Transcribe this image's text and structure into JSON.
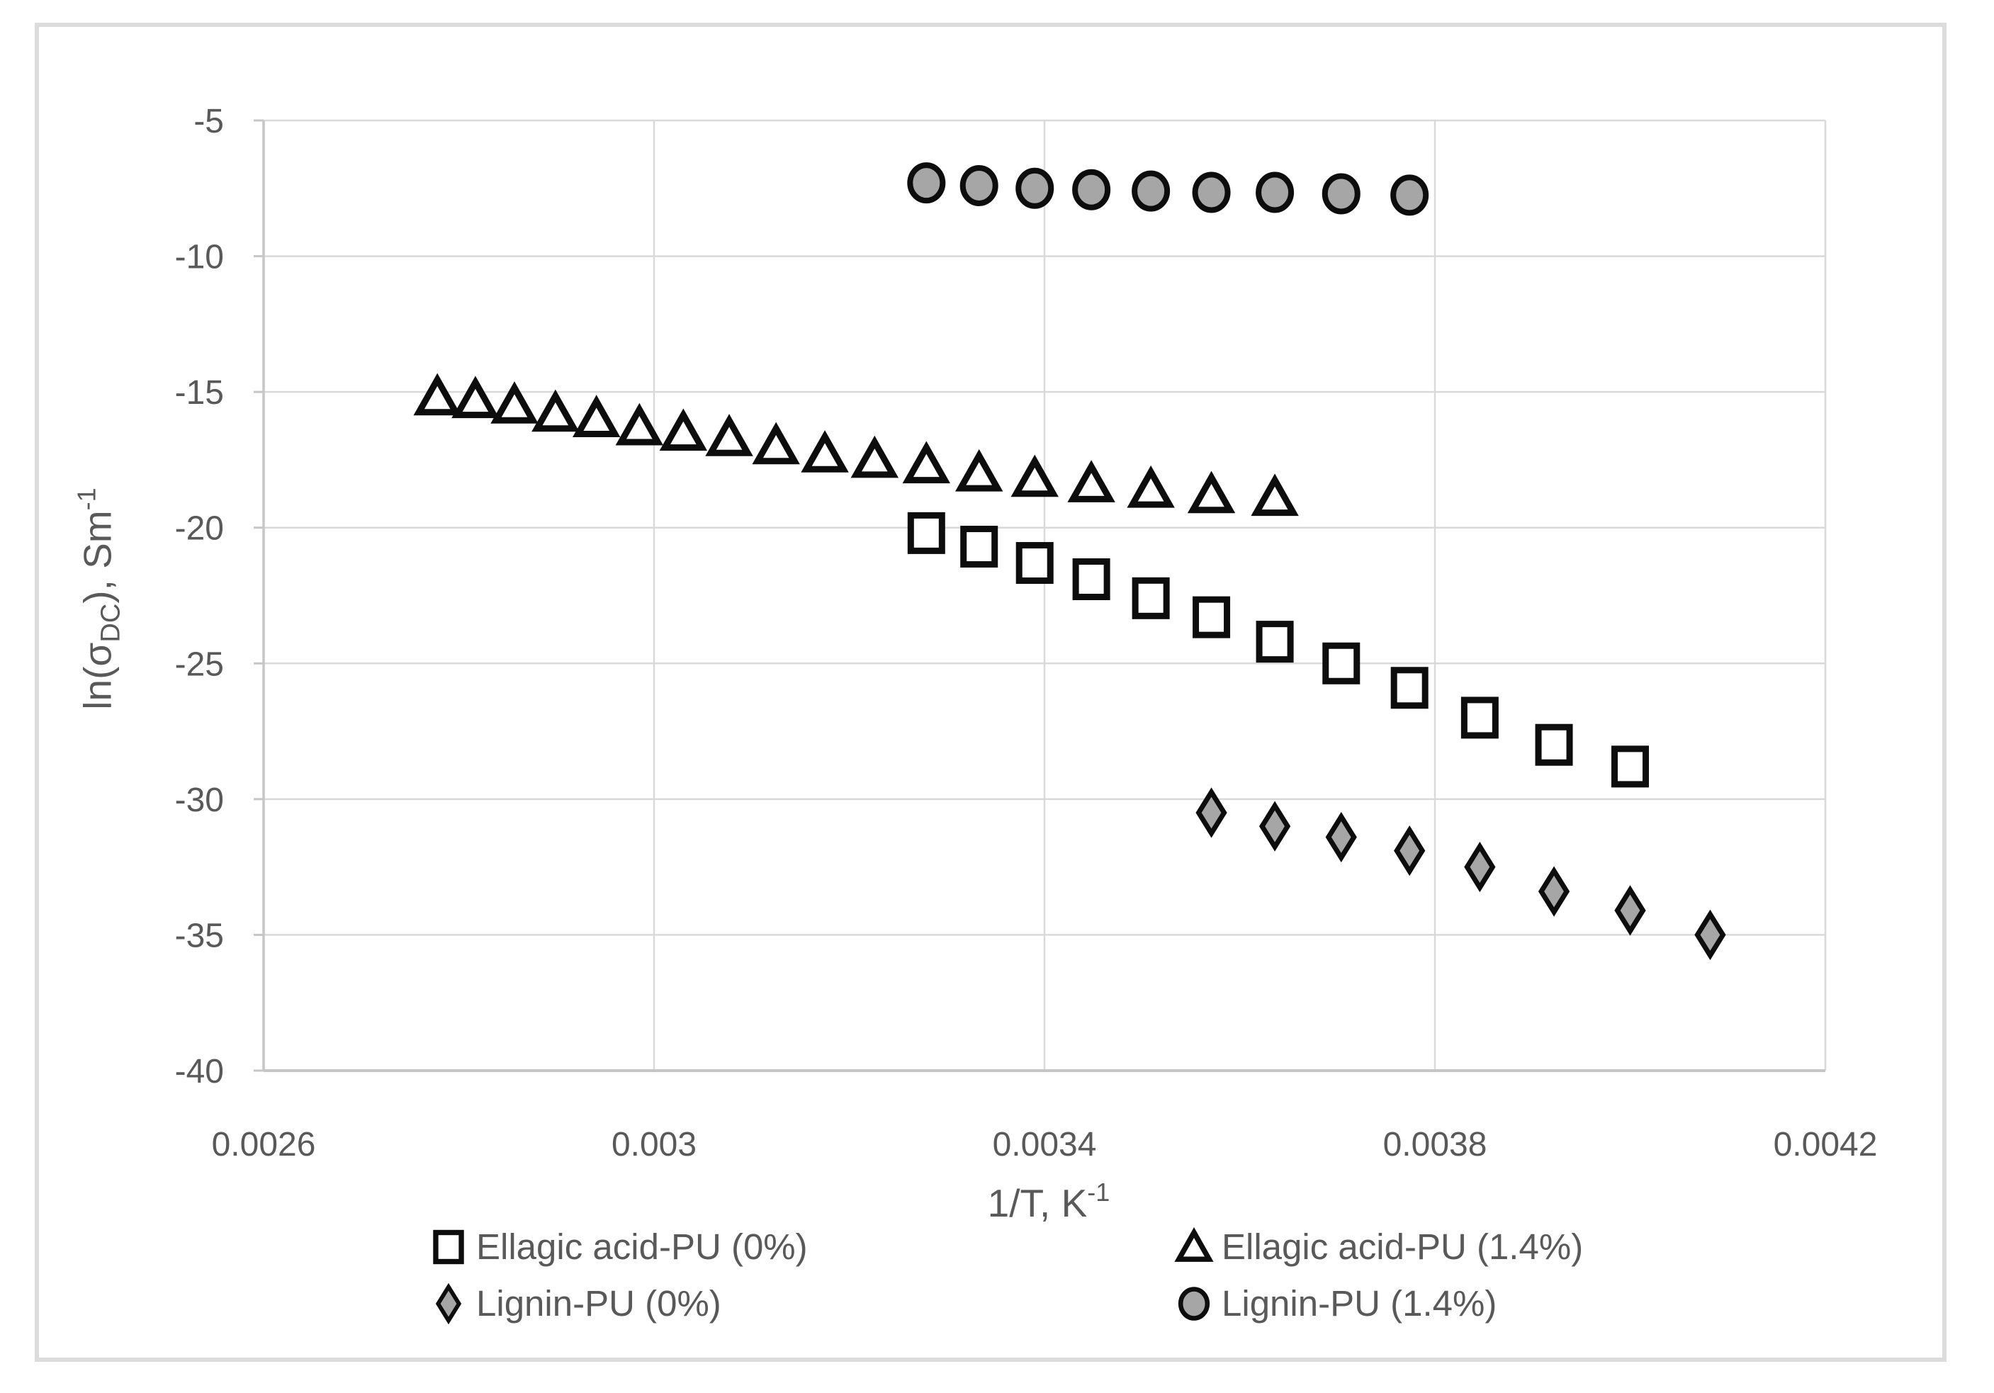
{
  "figure": {
    "background": "#ffffff",
    "frame_color": "#dcdcdc"
  },
  "colors": {
    "grid": "#d9d9d9",
    "axis": "#c6c6c6",
    "tick_text": "#595959",
    "title_text": "#595959",
    "marker_stroke": "#0d0d0d",
    "gray_fill": "#a6a6a6",
    "white_fill": "#ffffff"
  },
  "chart_data": {
    "type": "scatter",
    "title": "",
    "xlabel": "1/T, K^-1",
    "ylabel": "ln(sigma_DC), Sm^-1",
    "xlabel_parts": {
      "main": "1/T, K",
      "sup": "-1"
    },
    "ylabel_parts": {
      "pre": "ln(σ",
      "sub": "DC",
      "mid": "), Sm",
      "sup": "-1"
    },
    "grid": true,
    "legend_position": "bottom-two-columns",
    "x_axis": {
      "min": 0.0026,
      "max": 0.0042,
      "ticks": [
        {
          "v": 0.0026,
          "label": "0.0026"
        },
        {
          "v": 0.003,
          "label": "0.003"
        },
        {
          "v": 0.0034,
          "label": "0.0034"
        },
        {
          "v": 0.0038,
          "label": "0.0038"
        },
        {
          "v": 0.0042,
          "label": "0.0042"
        }
      ]
    },
    "y_axis": {
      "min": -40,
      "max": -5,
      "ticks": [
        {
          "v": -5,
          "label": "-5"
        },
        {
          "v": -10,
          "label": "-10"
        },
        {
          "v": -15,
          "label": "-15"
        },
        {
          "v": -20,
          "label": "-20"
        },
        {
          "v": -25,
          "label": "-25"
        },
        {
          "v": -30,
          "label": "-30"
        },
        {
          "v": -35,
          "label": "-35"
        },
        {
          "v": -40,
          "label": "-40"
        }
      ]
    },
    "series": [
      {
        "name": "Ellagic acid-PU (0%)",
        "marker": "square",
        "fill": "#ffffff",
        "stroke": "#0d0d0d",
        "x": [
          0.003279,
          0.003333,
          0.00339,
          0.003448,
          0.003509,
          0.003571,
          0.003636,
          0.003704,
          0.003774,
          0.003846,
          0.003922,
          0.004
        ],
        "y": [
          -20.2,
          -20.7,
          -21.3,
          -21.9,
          -22.6,
          -23.3,
          -24.2,
          -25.0,
          -25.9,
          -27.0,
          -28.0,
          -28.8
        ]
      },
      {
        "name": "Ellagic acid-PU (1.4%)",
        "marker": "triangle",
        "fill": "#ffffff",
        "stroke": "#0d0d0d",
        "x": [
          0.002778,
          0.002817,
          0.002857,
          0.002899,
          0.002941,
          0.002985,
          0.00303,
          0.003077,
          0.003125,
          0.003175,
          0.003226,
          0.003279,
          0.003333,
          0.00339,
          0.003448,
          0.003509,
          0.003571,
          0.003636
        ],
        "y": [
          -15.2,
          -15.3,
          -15.5,
          -15.8,
          -16.0,
          -16.3,
          -16.5,
          -16.7,
          -17.0,
          -17.3,
          -17.5,
          -17.7,
          -18.0,
          -18.2,
          -18.4,
          -18.6,
          -18.8,
          -18.9
        ]
      },
      {
        "name": "Lignin-PU (0%)",
        "marker": "diamond",
        "fill": "#a6a6a6",
        "stroke": "#0d0d0d",
        "x": [
          0.003571,
          0.003636,
          0.003704,
          0.003774,
          0.003846,
          0.003922,
          0.004,
          0.004082
        ],
        "y": [
          -30.5,
          -31.0,
          -31.4,
          -31.9,
          -32.5,
          -33.4,
          -34.1,
          -35.0
        ]
      },
      {
        "name": "Lignin-PU (1.4%)",
        "marker": "circle",
        "fill": "#a6a6a6",
        "stroke": "#0d0d0d",
        "x": [
          0.003279,
          0.003333,
          0.00339,
          0.003448,
          0.003509,
          0.003571,
          0.003636,
          0.003704,
          0.003774
        ],
        "y": [
          -7.3,
          -7.4,
          -7.5,
          -7.55,
          -7.6,
          -7.65,
          -7.65,
          -7.7,
          -7.75
        ]
      }
    ],
    "legend_layout": {
      "col1_series": [
        0,
        2
      ],
      "col2_series": [
        1,
        3
      ]
    }
  }
}
